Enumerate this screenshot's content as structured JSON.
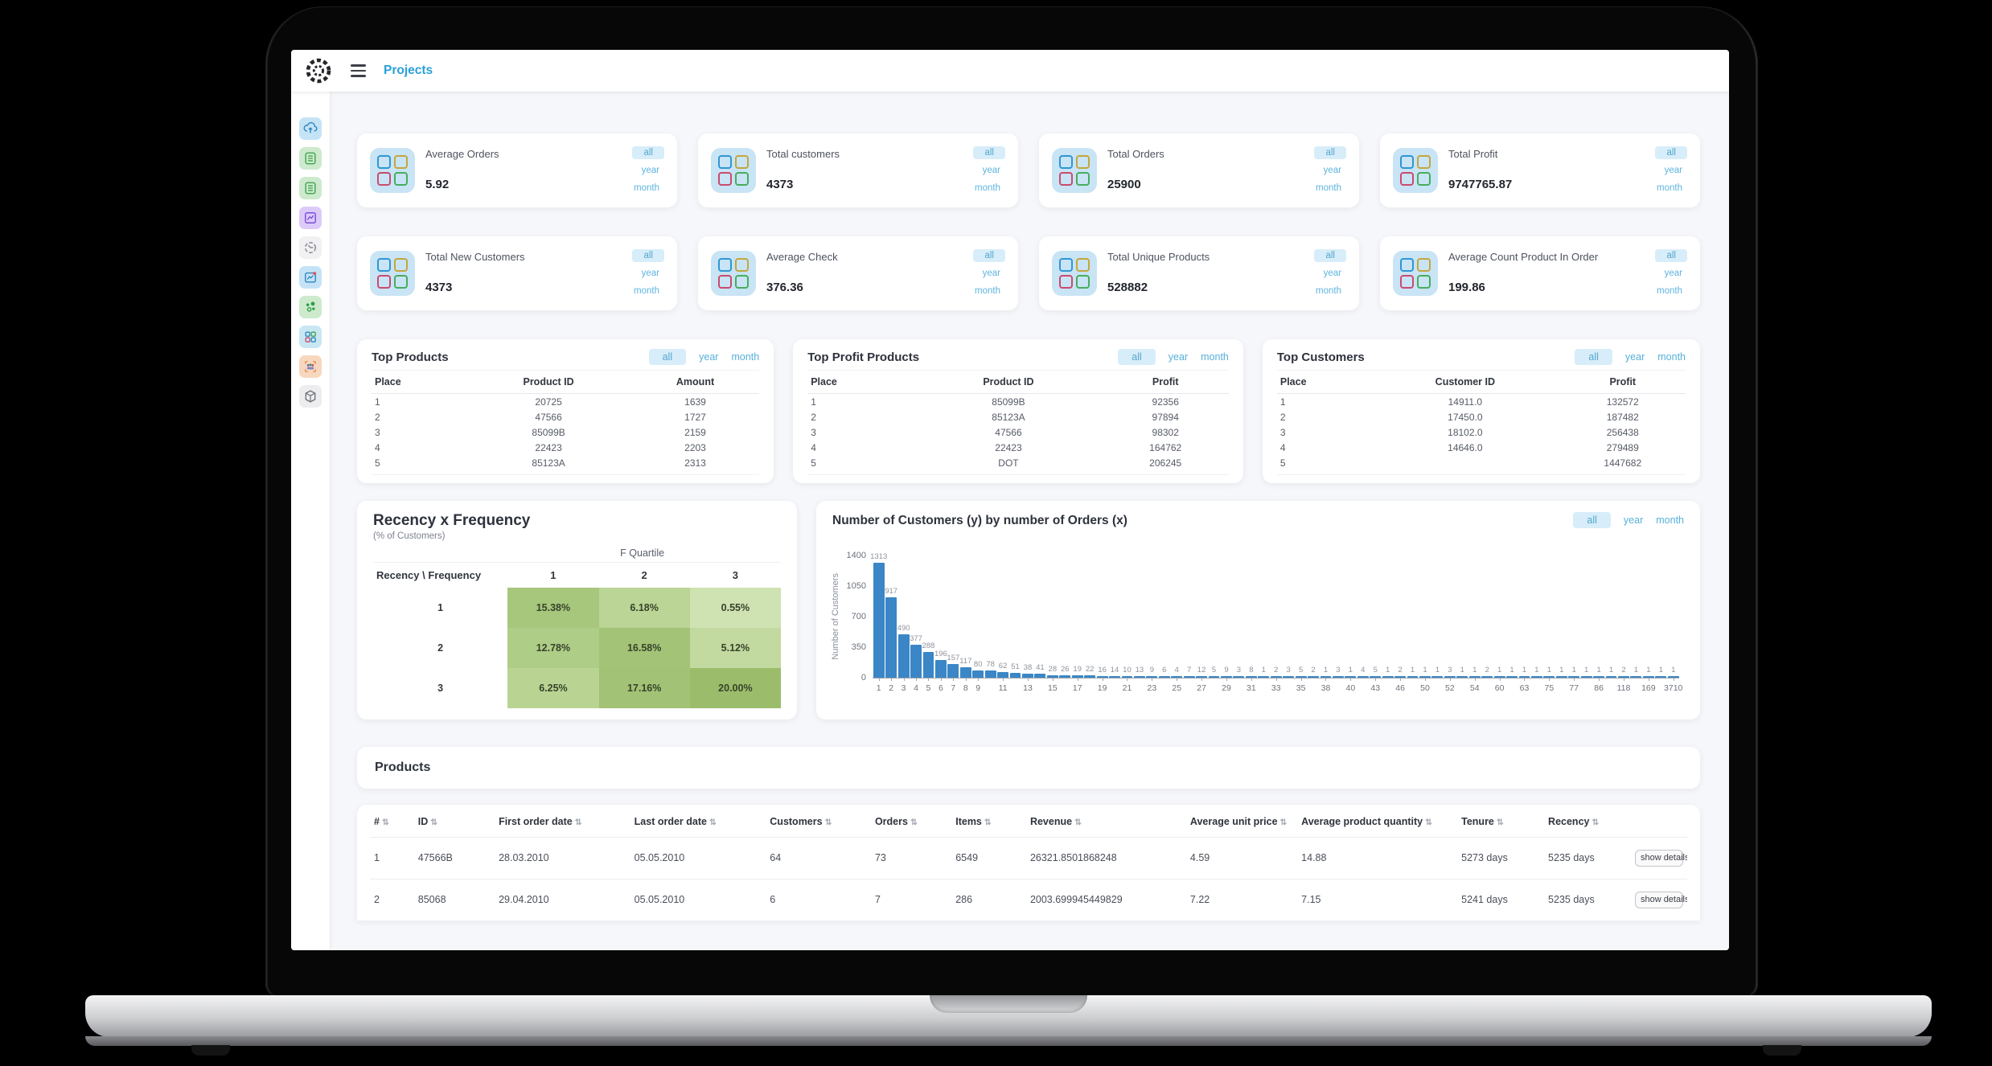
{
  "topbar": {
    "title": "Projects"
  },
  "sidebar": {
    "items": [
      {
        "name": "upload-cloud-icon",
        "bg": "#c5e3f6"
      },
      {
        "name": "report-document-icon",
        "bg": "#cdeacd"
      },
      {
        "name": "report-document-2-icon",
        "bg": "#cdeacd"
      },
      {
        "name": "line-chart-icon",
        "bg": "#dccbf8"
      },
      {
        "name": "clock-icon",
        "bg": "#f1f1f3"
      },
      {
        "name": "chart-notification-icon",
        "bg": "#c5e3f6"
      },
      {
        "name": "scatter-bubbles-icon",
        "bg": "#cdeacd"
      },
      {
        "name": "app-grid-icon",
        "bg": "#c8e7f2"
      },
      {
        "name": "team-icon",
        "bg": "#f7d8bf"
      },
      {
        "name": "cube-icon",
        "bg": "#ededef"
      }
    ]
  },
  "period_toggle": {
    "options": [
      "all",
      "year",
      "month"
    ],
    "selected": "all"
  },
  "accent": {
    "blue": "#2a9fd8",
    "toggle_bg": "#d7edf9",
    "bar": "#3a86c6"
  },
  "kpi_cards": [
    {
      "title": "Average Orders",
      "value": "5.92"
    },
    {
      "title": "Total customers",
      "value": "4373"
    },
    {
      "title": "Total Orders",
      "value": "25900"
    },
    {
      "title": "Total Profit",
      "value": "9747765.87"
    },
    {
      "title": "Total New Customers",
      "value": "4373"
    },
    {
      "title": "Average Check",
      "value": "376.36"
    },
    {
      "title": "Total Unique Products",
      "value": "528882"
    },
    {
      "title": "Average Count Product In Order",
      "value": "199.86"
    }
  ],
  "top_tables": [
    {
      "title": "Top Products",
      "columns": [
        "Place",
        "Product ID",
        "Amount"
      ],
      "rows": [
        [
          "1",
          "20725",
          "1639"
        ],
        [
          "2",
          "47566",
          "1727"
        ],
        [
          "3",
          "85099B",
          "2159"
        ],
        [
          "4",
          "22423",
          "2203"
        ],
        [
          "5",
          "85123A",
          "2313"
        ]
      ]
    },
    {
      "title": "Top Profit Products",
      "columns": [
        "Place",
        "Product ID",
        "Profit"
      ],
      "rows": [
        [
          "1",
          "85099B",
          "92356"
        ],
        [
          "2",
          "85123A",
          "97894"
        ],
        [
          "3",
          "47566",
          "98302"
        ],
        [
          "4",
          "22423",
          "164762"
        ],
        [
          "5",
          "DOT",
          "206245"
        ]
      ]
    },
    {
      "title": "Top Customers",
      "columns": [
        "Place",
        "Customer ID",
        "Profit"
      ],
      "rows": [
        [
          "1",
          "14911.0",
          "132572"
        ],
        [
          "2",
          "17450.0",
          "187482"
        ],
        [
          "3",
          "18102.0",
          "256438"
        ],
        [
          "4",
          "14646.0",
          "279489"
        ],
        [
          "5",
          "",
          "1447682"
        ]
      ]
    }
  ],
  "rf": {
    "title": "Recency x Frequency",
    "subtitle": "(% of Customers)",
    "group_header": "F Quartile",
    "corner_label": "Recency \\ Frequency",
    "col_headers": [
      "1",
      "2",
      "3"
    ],
    "rows": [
      {
        "label": "1",
        "cells": [
          {
            "value": "15.38%",
            "color": "#a6c77c"
          },
          {
            "value": "6.18%",
            "color": "#bad595"
          },
          {
            "value": "0.55%",
            "color": "#cfe2b2"
          }
        ]
      },
      {
        "label": "2",
        "cells": [
          {
            "value": "12.78%",
            "color": "#aecd86"
          },
          {
            "value": "16.58%",
            "color": "#a3c377"
          },
          {
            "value": "5.12%",
            "color": "#c2da9f"
          }
        ]
      },
      {
        "label": "3",
        "cells": [
          {
            "value": "6.25%",
            "color": "#b9d492"
          },
          {
            "value": "17.16%",
            "color": "#a2c275"
          },
          {
            "value": "20.00%",
            "color": "#9bbd6b"
          }
        ]
      }
    ]
  },
  "chart_data": {
    "type": "bar",
    "title": "Number of Customers (y) by number of Orders (x)",
    "ylabel": "Number of Customers",
    "xlabel": "",
    "ylim": [
      0,
      1400
    ],
    "yticks": [
      0,
      350,
      700,
      1050,
      1400
    ],
    "grid": false,
    "legend": false,
    "bar_color": "#3a86c6",
    "x_tick_labels": [
      "1",
      "2",
      "3",
      "4",
      "5",
      "6",
      "7",
      "8",
      "9",
      "",
      "11",
      "",
      "13",
      "",
      "15",
      "",
      "17",
      "",
      "19",
      "",
      "21",
      "",
      "23",
      "",
      "25",
      "",
      "27",
      "",
      "29",
      "",
      "31",
      "",
      "33",
      "",
      "35",
      "",
      "38",
      "",
      "40",
      "",
      "43",
      "",
      "46",
      "",
      "50",
      "",
      "52",
      "",
      "54",
      "",
      "60",
      "",
      "63",
      "",
      "75",
      "",
      "77",
      "",
      "86",
      "",
      "118",
      "",
      "169",
      "",
      "3710"
    ],
    "values": [
      1313,
      917,
      490,
      377,
      288,
      196,
      157,
      117,
      80,
      78,
      62,
      51,
      38,
      41,
      28,
      26,
      19,
      22,
      16,
      14,
      10,
      13,
      9,
      6,
      4,
      7,
      12,
      5,
      9,
      3,
      8,
      1,
      2,
      3,
      5,
      2,
      1,
      3,
      1,
      4,
      5,
      1,
      2,
      1,
      1,
      1,
      3,
      1,
      1,
      2,
      1,
      1,
      1,
      1,
      1,
      1,
      1,
      1,
      1,
      1,
      2,
      1,
      1,
      1,
      1
    ]
  },
  "products": {
    "title": "Products",
    "columns": [
      "#",
      "ID",
      "First order date",
      "Last order date",
      "Customers",
      "Orders",
      "Items",
      "Revenue",
      "Average unit price",
      "Average product quantity",
      "Tenure",
      "Recency"
    ],
    "action_label": "show details",
    "rows": [
      [
        "1",
        "47566B",
        "28.03.2010",
        "05.05.2010",
        "64",
        "73",
        "6549",
        "26321.8501868248",
        "4.59",
        "14.88",
        "5273 days",
        "5235 days"
      ],
      [
        "2",
        "85068",
        "29.04.2010",
        "05.05.2010",
        "6",
        "7",
        "286",
        "2003.699945449829",
        "7.22",
        "7.15",
        "5241 days",
        "5235 days"
      ]
    ]
  }
}
